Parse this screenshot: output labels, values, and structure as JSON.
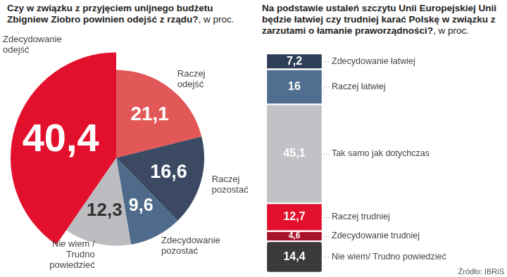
{
  "chart_data": [
    {
      "type": "pie",
      "title": "Czy w związku z przyjęciem unijnego budżetu Zbigniew Ziobro powinien odejść z rządu?",
      "subtitle": ", w proc.",
      "categories": [
        "Raczej odejść",
        "Raczej pozostać",
        "Zdecydowanie pozostać",
        "Nie wiem / Trudno powiedzieć",
        "Zdecydowanie odejść"
      ],
      "values": [
        21.1,
        16.6,
        9.6,
        12.3,
        40.4
      ],
      "value_labels": [
        "21,1",
        "16,6",
        "9,6",
        "12,3",
        "40,4"
      ],
      "colors": [
        "#e25757",
        "#3b4a62",
        "#4e6b8c",
        "#bdbdc1",
        "#e2102c"
      ],
      "data_labels": true
    },
    {
      "type": "bar",
      "title": "Na podstawie ustaleń szczytu Unii Europejskiej Unii będzie łatwiej czy trudniej karać Polskę w związku z zarzutami o łamanie praworządności?",
      "subtitle": ", w proc.",
      "stacked": true,
      "categories": [
        null
      ],
      "series": [
        {
          "name": "Zdecydowanie łatwiej",
          "color": "#2e3d58",
          "values": [
            7.2
          ],
          "value_labels": [
            "7,2"
          ]
        },
        {
          "name": "Raczej łatwiej",
          "color": "#4f6e90",
          "values": [
            16
          ],
          "value_labels": [
            "16"
          ]
        },
        {
          "name": "Tak samo jak dotychczas",
          "color": "#c2c2c6",
          "values": [
            45.1
          ],
          "value_labels": [
            "45,1"
          ]
        },
        {
          "name": "Raczej trudniej",
          "color": "#e2102c",
          "values": [
            12.7
          ],
          "value_labels": [
            "12,7"
          ]
        },
        {
          "name": "Zdecydowanie trudniej",
          "color": "#a8132b",
          "values": [
            4.6
          ],
          "value_labels": [
            "4,6"
          ]
        },
        {
          "name": "Nie wiem/ Trudno powiedzieć",
          "color": "#3a3a3c",
          "values": [
            14.4
          ],
          "value_labels": [
            "14,4"
          ]
        }
      ],
      "ylim": [
        0,
        100
      ],
      "grid": false,
      "tick_labels": false,
      "data_labels": true
    }
  ],
  "source": "Źródło: IBRiS"
}
